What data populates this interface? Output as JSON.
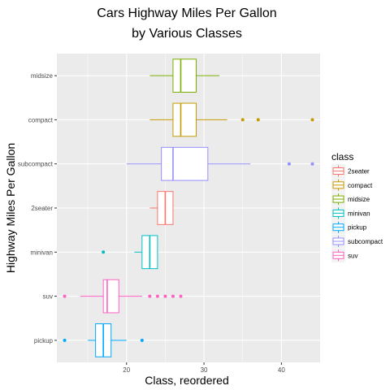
{
  "chart_data": {
    "type": "boxplot",
    "title_lines": [
      "Cars Highway Miles Per Gallon",
      "by Various Classes"
    ],
    "xlabel": "Class, reordered",
    "ylabel": "Highway Miles Per Gallon",
    "xlim": [
      11,
      45
    ],
    "x_ticks": [
      20,
      30,
      40
    ],
    "grid": true,
    "legend": {
      "title": "class",
      "placement": "right"
    },
    "categories": [
      "midsize",
      "compact",
      "subcompact",
      "2seater",
      "minivan",
      "suv",
      "pickup"
    ],
    "series": [
      {
        "name": "midsize",
        "color": "#7CAE00",
        "whisker_low": 23,
        "q1": 26,
        "median": 27,
        "q3": 29,
        "whisker_high": 32,
        "outliers": []
      },
      {
        "name": "compact",
        "color": "#C49A00",
        "whisker_low": 23,
        "q1": 26,
        "median": 27,
        "q3": 29,
        "whisker_high": 33,
        "outliers": [
          35,
          37,
          44
        ]
      },
      {
        "name": "subcompact",
        "color": "#9590FF",
        "whisker_low": 20,
        "q1": 24.5,
        "median": 26,
        "q3": 30.5,
        "whisker_high": 36,
        "outliers": [
          41,
          44
        ]
      },
      {
        "name": "2seater",
        "color": "#F8766D",
        "whisker_low": 23,
        "q1": 24,
        "median": 25,
        "q3": 26,
        "whisker_high": 26,
        "outliers": []
      },
      {
        "name": "minivan",
        "color": "#00BFC4",
        "whisker_low": 21,
        "q1": 22,
        "median": 23,
        "q3": 24,
        "whisker_high": 24,
        "outliers": [
          17
        ]
      },
      {
        "name": "suv",
        "color": "#FF61C3",
        "whisker_low": 14,
        "q1": 17,
        "median": 17.5,
        "q3": 19,
        "whisker_high": 22,
        "outliers": [
          12,
          23,
          24,
          25,
          26,
          27
        ]
      },
      {
        "name": "pickup",
        "color": "#00A9FF",
        "whisker_low": 15,
        "q1": 16,
        "median": 17,
        "q3": 18,
        "whisker_high": 20,
        "outliers": [
          12,
          22
        ]
      }
    ],
    "legend_order": [
      "2seater",
      "compact",
      "midsize",
      "minivan",
      "pickup",
      "subcompact",
      "suv"
    ]
  }
}
